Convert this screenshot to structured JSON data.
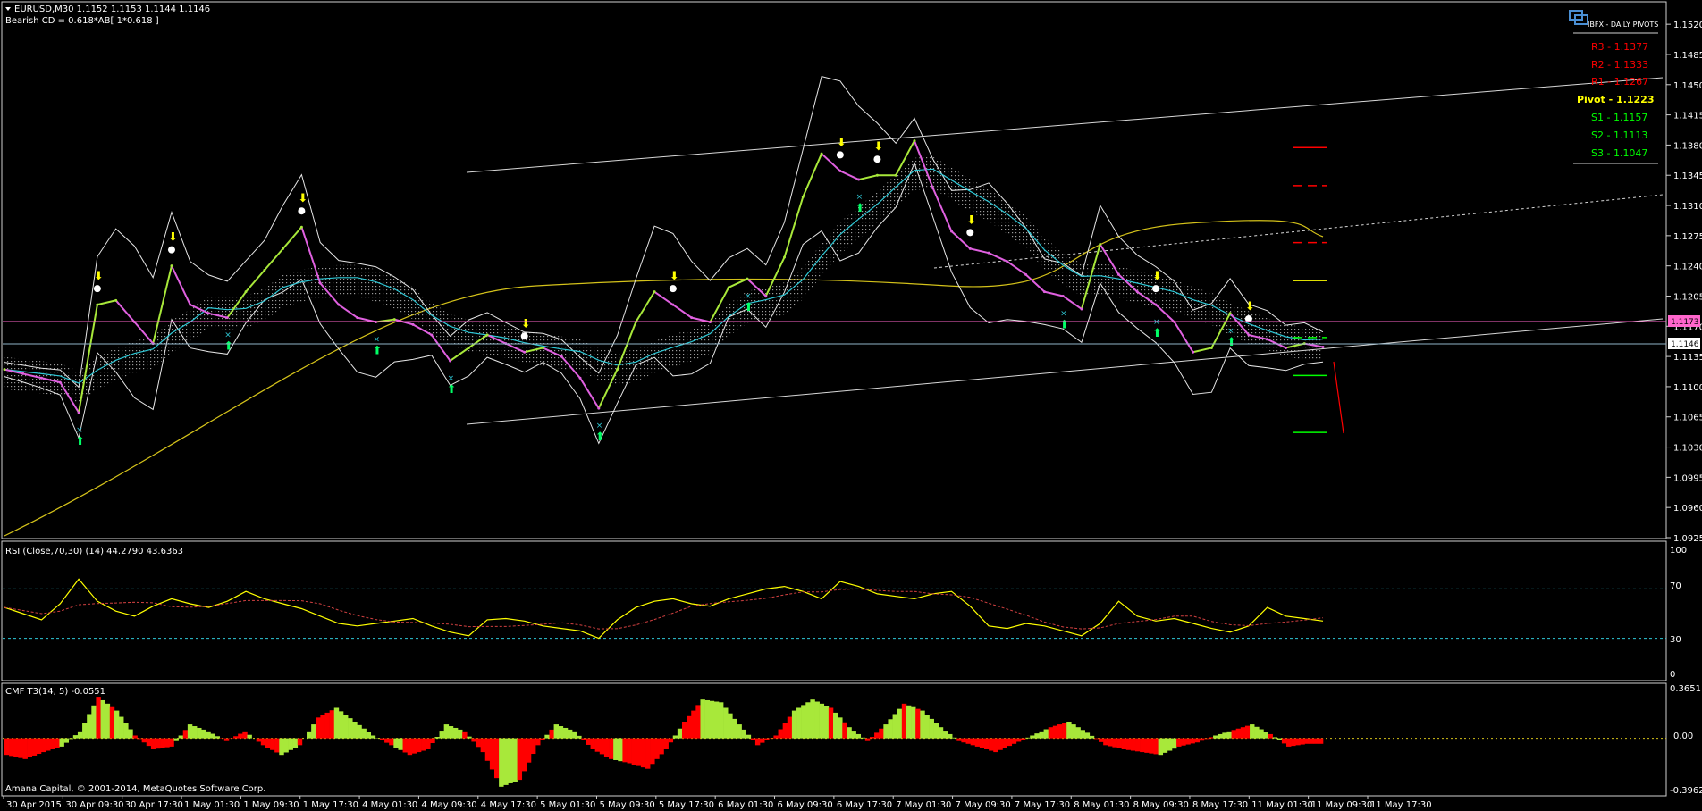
{
  "header": {
    "symbol_line": "EURUSD,M30  1.1152 1.1153 1.1144 1.1146",
    "indicator_line": "Bearish CD = 0.618*AB[ 1*0.618 ]"
  },
  "pivot_panel": {
    "title": "IBFX - DAILY PIVOTS",
    "levels": [
      {
        "label": "R3 - 1.1377",
        "color": "#ff0000"
      },
      {
        "label": "R2 - 1.1333",
        "color": "#ff0000"
      },
      {
        "label": "R1 - 1.1267",
        "color": "#ff0000"
      },
      {
        "label": "Pivot - 1.1223",
        "color": "#ffff00"
      },
      {
        "label": "S1 - 1.1157",
        "color": "#00ff00"
      },
      {
        "label": "S2 - 1.1113",
        "color": "#00ff00"
      },
      {
        "label": "S3 - 1.1047",
        "color": "#00ff00"
      }
    ]
  },
  "price_markers": {
    "pink": "1.1173",
    "current": "1.1146"
  },
  "rsi_panel": {
    "label": "RSI (Close,70,30) (14) 44.2790 43.6363",
    "ticks": [
      "100",
      "70",
      "30",
      "0"
    ]
  },
  "cmf_panel": {
    "label": "CMF T3(14, 5) -0.0551",
    "ticks": [
      "0.3651",
      "0.00",
      "-0.3962"
    ]
  },
  "footer": {
    "copyright": "Amana Capital, © 2001-2014, MetaQuotes Software Corp."
  },
  "chart_data": [
    {
      "type": "line",
      "title": "EURUSD,M30",
      "ylim": [
        1.0925,
        1.1545
      ],
      "y_ticks": [
        "1.1520",
        "1.1485",
        "1.1450",
        "1.1415",
        "1.1380",
        "1.1345",
        "1.1310",
        "1.1275",
        "1.1240",
        "1.1205",
        "1.1170",
        "1.1135",
        "1.1100",
        "1.1065",
        "1.1030",
        "1.0995",
        "1.0960",
        "1.0925"
      ],
      "x_ticks": [
        "30 Apr 2015",
        "30 Apr 09:30",
        "30 Apr 17:30",
        "1 May 01:30",
        "1 May 09:30",
        "1 May 17:30",
        "4 May 01:30",
        "4 May 09:30",
        "4 May 17:30",
        "5 May 01:30",
        "5 May 09:30",
        "5 May 17:30",
        "6 May 01:30",
        "6 May 09:30",
        "6 May 17:30",
        "7 May 01:30",
        "7 May 09:30",
        "7 May 17:30",
        "8 May 01:30",
        "8 May 09:30",
        "8 May 17:30",
        "11 May 01:30",
        "11 May 09:30",
        "11 May 17:30"
      ],
      "series": [
        {
          "values": [
            1.112,
            1.1115,
            1.111,
            1.1105,
            1.107,
            1.1195,
            1.12,
            1.1175,
            1.115,
            1.124,
            1.1195,
            1.1185,
            1.118,
            1.121,
            1.1235,
            1.126,
            1.1285,
            1.122,
            1.1195,
            1.118,
            1.1175,
            1.1178,
            1.1172,
            1.116,
            1.113,
            1.1145,
            1.116,
            1.115,
            1.114,
            1.1145,
            1.1135,
            1.111,
            1.1075,
            1.112,
            1.1175,
            1.121,
            1.1195,
            1.118,
            1.1175,
            1.1215,
            1.1225,
            1.1205,
            1.125,
            1.132,
            1.137,
            1.135,
            1.134,
            1.1345,
            1.1345,
            1.1385,
            1.133,
            1.128,
            1.126,
            1.1255,
            1.1245,
            1.123,
            1.121,
            1.1205,
            1.119,
            1.1265,
            1.123,
            1.121,
            1.1195,
            1.1175,
            1.114,
            1.1145,
            1.1185,
            1.116,
            1.1155,
            1.1145,
            1.115,
            1.1146
          ]
        }
      ],
      "horizontal_lines": [
        1.1173,
        1.1146
      ],
      "pivot_levels": {
        "R3": 1.1377,
        "R2": 1.1333,
        "R1": 1.1267,
        "Pivot": 1.1223,
        "S1": 1.1157,
        "S2": 1.1113,
        "S3": 1.1047
      }
    },
    {
      "type": "line",
      "title": "RSI (Close,70,30) (14) 44.2790 43.6363",
      "ylim": [
        0,
        100
      ],
      "levels": [
        70,
        30
      ],
      "series": [
        {
          "values": [
            55,
            50,
            45,
            58,
            78,
            60,
            52,
            48,
            56,
            62,
            58,
            55,
            60,
            68,
            62,
            58,
            54,
            48,
            42,
            40,
            42,
            44,
            46,
            40,
            35,
            32,
            45,
            46,
            44,
            40,
            38,
            36,
            30,
            45,
            55,
            60,
            62,
            58,
            56,
            62,
            66,
            70,
            72,
            68,
            62,
            76,
            72,
            66,
            64,
            62,
            66,
            68,
            56,
            40,
            38,
            42,
            40,
            36,
            32,
            42,
            60,
            48,
            44,
            46,
            42,
            38,
            35,
            40,
            55,
            48,
            46,
            44
          ]
        }
      ]
    },
    {
      "type": "bar",
      "title": "CMF T3(14, 5) -0.0551",
      "ylim": [
        -0.3962,
        0.3651
      ],
      "series": [
        {
          "values": [
            -0.12,
            -0.15,
            -0.1,
            -0.06,
            0.05,
            0.3,
            0.2,
            0.02,
            -0.08,
            -0.06,
            0.1,
            0.05,
            -0.02,
            0.05,
            -0.05,
            -0.12,
            -0.05,
            0.15,
            0.22,
            0.12,
            0.02,
            -0.05,
            -0.12,
            -0.08,
            0.1,
            0.05,
            -0.1,
            -0.35,
            -0.3,
            -0.05,
            0.1,
            0.05,
            -0.08,
            -0.15,
            -0.18,
            -0.22,
            -0.08,
            0.12,
            0.28,
            0.26,
            0.1,
            -0.05,
            0.02,
            0.2,
            0.28,
            0.22,
            0.08,
            -0.02,
            0.1,
            0.25,
            0.2,
            0.08,
            -0.02,
            -0.06,
            -0.1,
            -0.04,
            0.02,
            0.08,
            0.12,
            0.04,
            -0.05,
            -0.08,
            -0.1,
            -0.12,
            -0.06,
            -0.03,
            0.02,
            0.06,
            0.1,
            0.03,
            -0.06,
            -0.04
          ]
        }
      ]
    }
  ]
}
